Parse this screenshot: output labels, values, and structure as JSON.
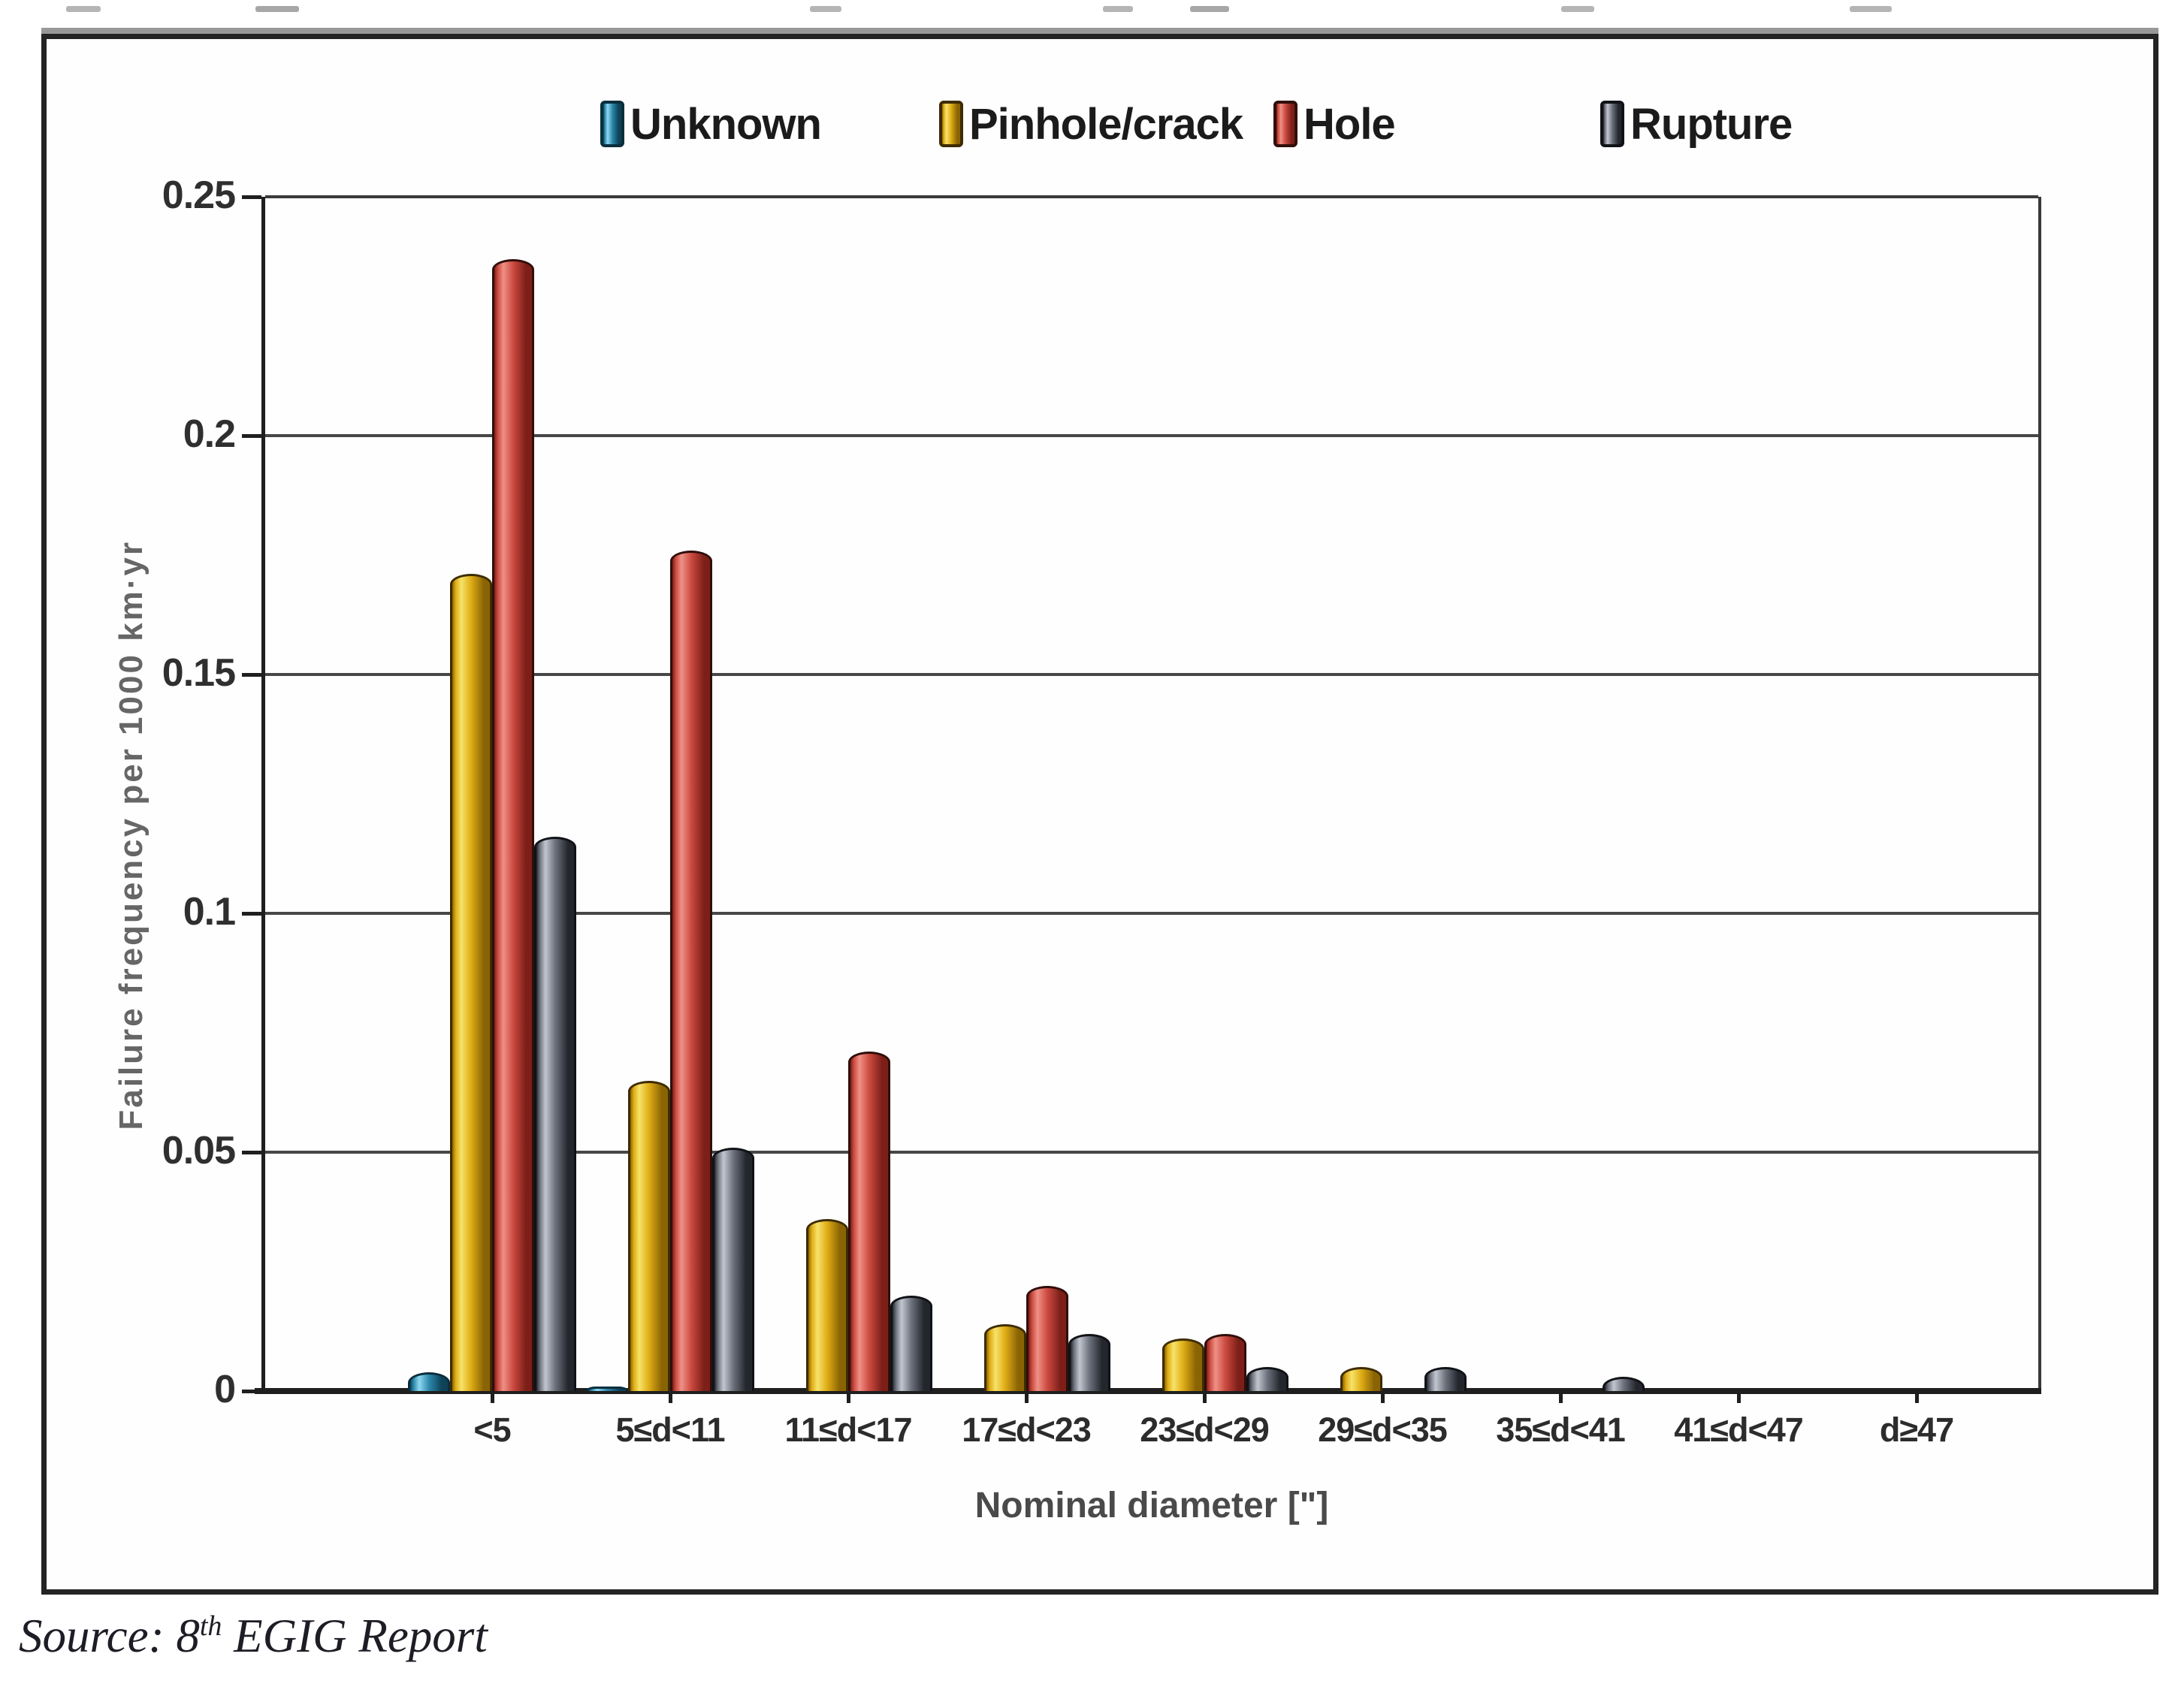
{
  "chart_data": {
    "type": "bar",
    "title": "",
    "categories": [
      "<5",
      "5≤d<11",
      "11≤d<17",
      "17≤d<23",
      "23≤d<29",
      "29≤d<35",
      "35≤d<41",
      "41≤d<47",
      "d≥47"
    ],
    "series": [
      {
        "name": "Unknown",
        "key": "unknown",
        "values": [
          0.004,
          0.001,
          0,
          0,
          0,
          0,
          0,
          0,
          0
        ],
        "colors": {
          "light": "#8fd8ef",
          "mid": "#2d89ad",
          "dark": "#0d4258",
          "border": "#0a2e3d"
        }
      },
      {
        "name": "Pinhole/crack",
        "key": "pinhole-crack",
        "values": [
          0.171,
          0.065,
          0.036,
          0.014,
          0.011,
          0.005,
          0,
          0,
          0
        ],
        "colors": {
          "light": "#f7e36a",
          "mid": "#dfac15",
          "dark": "#8a6404",
          "border": "#3d2c02"
        }
      },
      {
        "name": "Hole",
        "key": "hole",
        "values": [
          0.237,
          0.176,
          0.071,
          0.022,
          0.012,
          0,
          0,
          0,
          0
        ],
        "colors": {
          "light": "#ef9186",
          "mid": "#cc4a40",
          "dark": "#7c1f18",
          "border": "#300e0a"
        }
      },
      {
        "name": "Rupture",
        "key": "rupture",
        "values": [
          0.116,
          0.051,
          0.02,
          0.012,
          0.005,
          0.005,
          0.003,
          0,
          0
        ],
        "colors": {
          "light": "#c2c6cf",
          "mid": "#6d717c",
          "dark": "#23262c",
          "border": "#101217"
        }
      }
    ],
    "ylabel": "Failure frequency per 1000 km·yr",
    "xlabel": "Nominal diameter [\"]",
    "ylim": [
      0,
      0.25
    ],
    "yticks": [
      {
        "v": 0,
        "label": "0"
      },
      {
        "v": 0.05,
        "label": "0.05"
      },
      {
        "v": 0.1,
        "label": "0.1"
      },
      {
        "v": 0.15,
        "label": "0.15"
      },
      {
        "v": 0.2,
        "label": "0.2"
      },
      {
        "v": 0.25,
        "label": "0.25"
      }
    ],
    "grid": true,
    "legend_position": "top"
  },
  "source_note": {
    "prefix": "Source: 8",
    "superscript": "th",
    "suffix": " EGIG Report"
  }
}
